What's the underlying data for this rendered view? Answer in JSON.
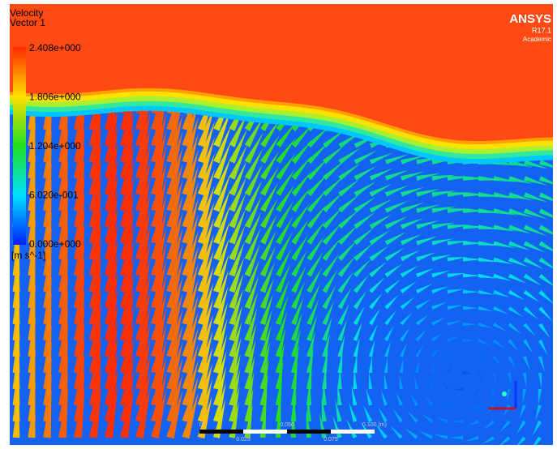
{
  "legend": {
    "title": "Velocity",
    "subtitle": "Vector 1",
    "ticks": [
      "2.408e+000",
      "1.806e+000",
      "1.204e+000",
      "6.020e-001",
      "0.000e+000"
    ],
    "unit": "[m s^-1]"
  },
  "logo": {
    "name": "ANSYS",
    "version": "R17.1",
    "edition": "Academic"
  },
  "scale_bar": {
    "labels": [
      "0",
      "0.050",
      "0.100 (m)"
    ],
    "sublabels": [
      "0.025",
      "0.075"
    ]
  }
}
